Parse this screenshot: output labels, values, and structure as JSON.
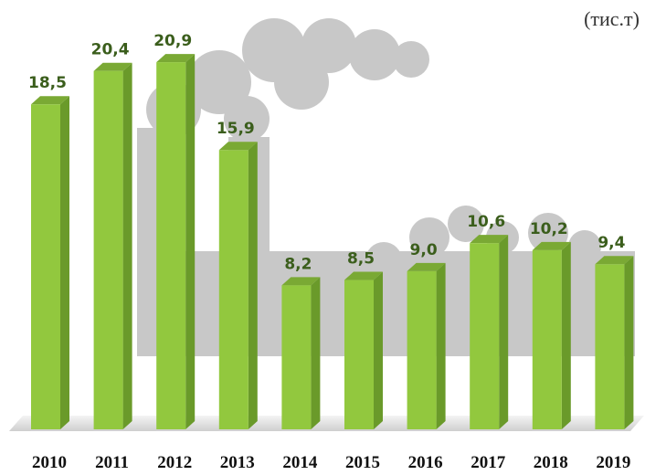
{
  "chart_data": {
    "type": "bar3d",
    "subtitle": "(тис.т)",
    "categories": [
      "2010",
      "2011",
      "2012",
      "2013",
      "2014",
      "2015",
      "2016",
      "2017",
      "2018",
      "2019"
    ],
    "values": [
      18.5,
      20.4,
      20.9,
      15.9,
      8.2,
      8.5,
      9.0,
      10.6,
      10.2,
      9.4
    ],
    "value_labels": [
      "18,5",
      "20,4",
      "20,9",
      "15,9",
      "8,2",
      "8,5",
      "9,0",
      "10,6",
      "10,2",
      "9,4"
    ],
    "color": "#92c83e"
  }
}
